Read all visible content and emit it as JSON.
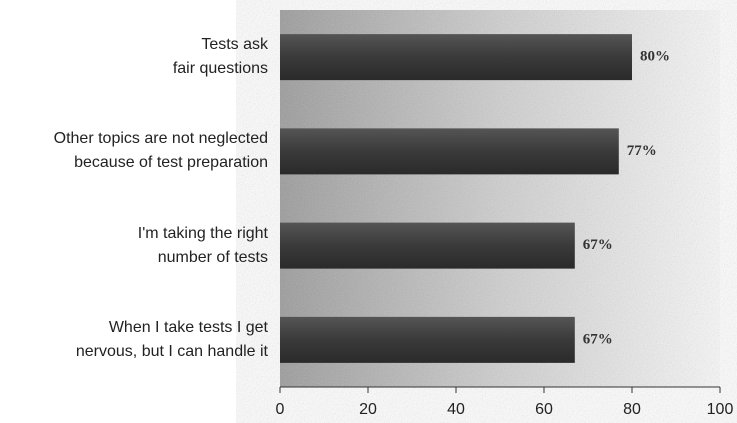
{
  "chart_data": {
    "type": "bar",
    "orientation": "horizontal",
    "categories": [
      "Tests ask\nfair questions",
      "Other topics are not neglected\nbecause of test preparation",
      "I'm taking the right\nnumber of tests",
      "When I take tests I get\nnervous, but I can handle it"
    ],
    "values": [
      80,
      77,
      67,
      67
    ],
    "value_labels": [
      "80%",
      "77%",
      "67%",
      "67%"
    ],
    "color": "#3a3a3a",
    "xlim": [
      0,
      100
    ],
    "xticks": [
      0,
      20,
      40,
      60,
      80,
      100
    ]
  }
}
